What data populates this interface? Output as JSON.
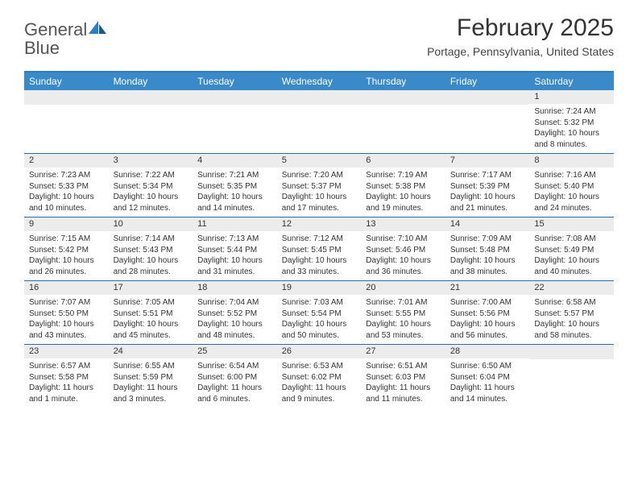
{
  "header": {
    "logo_general": "General",
    "logo_blue": "Blue",
    "month_title": "February 2025",
    "location": "Portage, Pennsylvania, United States"
  },
  "style": {
    "accent_color": "#3a89c9",
    "border_color": "#2e6da4",
    "date_bg": "#ececec",
    "text_color": "#333333",
    "logo_blue_color": "#2e7cc2"
  },
  "days_of_week": [
    "Sunday",
    "Monday",
    "Tuesday",
    "Wednesday",
    "Thursday",
    "Friday",
    "Saturday"
  ],
  "calendar": {
    "weeks": [
      [
        {
          "date": "",
          "sunrise": "",
          "sunset": "",
          "daylight": ""
        },
        {
          "date": "",
          "sunrise": "",
          "sunset": "",
          "daylight": ""
        },
        {
          "date": "",
          "sunrise": "",
          "sunset": "",
          "daylight": ""
        },
        {
          "date": "",
          "sunrise": "",
          "sunset": "",
          "daylight": ""
        },
        {
          "date": "",
          "sunrise": "",
          "sunset": "",
          "daylight": ""
        },
        {
          "date": "",
          "sunrise": "",
          "sunset": "",
          "daylight": ""
        },
        {
          "date": "1",
          "sunrise": "Sunrise: 7:24 AM",
          "sunset": "Sunset: 5:32 PM",
          "daylight": "Daylight: 10 hours and 8 minutes."
        }
      ],
      [
        {
          "date": "2",
          "sunrise": "Sunrise: 7:23 AM",
          "sunset": "Sunset: 5:33 PM",
          "daylight": "Daylight: 10 hours and 10 minutes."
        },
        {
          "date": "3",
          "sunrise": "Sunrise: 7:22 AM",
          "sunset": "Sunset: 5:34 PM",
          "daylight": "Daylight: 10 hours and 12 minutes."
        },
        {
          "date": "4",
          "sunrise": "Sunrise: 7:21 AM",
          "sunset": "Sunset: 5:35 PM",
          "daylight": "Daylight: 10 hours and 14 minutes."
        },
        {
          "date": "5",
          "sunrise": "Sunrise: 7:20 AM",
          "sunset": "Sunset: 5:37 PM",
          "daylight": "Daylight: 10 hours and 17 minutes."
        },
        {
          "date": "6",
          "sunrise": "Sunrise: 7:19 AM",
          "sunset": "Sunset: 5:38 PM",
          "daylight": "Daylight: 10 hours and 19 minutes."
        },
        {
          "date": "7",
          "sunrise": "Sunrise: 7:17 AM",
          "sunset": "Sunset: 5:39 PM",
          "daylight": "Daylight: 10 hours and 21 minutes."
        },
        {
          "date": "8",
          "sunrise": "Sunrise: 7:16 AM",
          "sunset": "Sunset: 5:40 PM",
          "daylight": "Daylight: 10 hours and 24 minutes."
        }
      ],
      [
        {
          "date": "9",
          "sunrise": "Sunrise: 7:15 AM",
          "sunset": "Sunset: 5:42 PM",
          "daylight": "Daylight: 10 hours and 26 minutes."
        },
        {
          "date": "10",
          "sunrise": "Sunrise: 7:14 AM",
          "sunset": "Sunset: 5:43 PM",
          "daylight": "Daylight: 10 hours and 28 minutes."
        },
        {
          "date": "11",
          "sunrise": "Sunrise: 7:13 AM",
          "sunset": "Sunset: 5:44 PM",
          "daylight": "Daylight: 10 hours and 31 minutes."
        },
        {
          "date": "12",
          "sunrise": "Sunrise: 7:12 AM",
          "sunset": "Sunset: 5:45 PM",
          "daylight": "Daylight: 10 hours and 33 minutes."
        },
        {
          "date": "13",
          "sunrise": "Sunrise: 7:10 AM",
          "sunset": "Sunset: 5:46 PM",
          "daylight": "Daylight: 10 hours and 36 minutes."
        },
        {
          "date": "14",
          "sunrise": "Sunrise: 7:09 AM",
          "sunset": "Sunset: 5:48 PM",
          "daylight": "Daylight: 10 hours and 38 minutes."
        },
        {
          "date": "15",
          "sunrise": "Sunrise: 7:08 AM",
          "sunset": "Sunset: 5:49 PM",
          "daylight": "Daylight: 10 hours and 40 minutes."
        }
      ],
      [
        {
          "date": "16",
          "sunrise": "Sunrise: 7:07 AM",
          "sunset": "Sunset: 5:50 PM",
          "daylight": "Daylight: 10 hours and 43 minutes."
        },
        {
          "date": "17",
          "sunrise": "Sunrise: 7:05 AM",
          "sunset": "Sunset: 5:51 PM",
          "daylight": "Daylight: 10 hours and 45 minutes."
        },
        {
          "date": "18",
          "sunrise": "Sunrise: 7:04 AM",
          "sunset": "Sunset: 5:52 PM",
          "daylight": "Daylight: 10 hours and 48 minutes."
        },
        {
          "date": "19",
          "sunrise": "Sunrise: 7:03 AM",
          "sunset": "Sunset: 5:54 PM",
          "daylight": "Daylight: 10 hours and 50 minutes."
        },
        {
          "date": "20",
          "sunrise": "Sunrise: 7:01 AM",
          "sunset": "Sunset: 5:55 PM",
          "daylight": "Daylight: 10 hours and 53 minutes."
        },
        {
          "date": "21",
          "sunrise": "Sunrise: 7:00 AM",
          "sunset": "Sunset: 5:56 PM",
          "daylight": "Daylight: 10 hours and 56 minutes."
        },
        {
          "date": "22",
          "sunrise": "Sunrise: 6:58 AM",
          "sunset": "Sunset: 5:57 PM",
          "daylight": "Daylight: 10 hours and 58 minutes."
        }
      ],
      [
        {
          "date": "23",
          "sunrise": "Sunrise: 6:57 AM",
          "sunset": "Sunset: 5:58 PM",
          "daylight": "Daylight: 11 hours and 1 minute."
        },
        {
          "date": "24",
          "sunrise": "Sunrise: 6:55 AM",
          "sunset": "Sunset: 5:59 PM",
          "daylight": "Daylight: 11 hours and 3 minutes."
        },
        {
          "date": "25",
          "sunrise": "Sunrise: 6:54 AM",
          "sunset": "Sunset: 6:00 PM",
          "daylight": "Daylight: 11 hours and 6 minutes."
        },
        {
          "date": "26",
          "sunrise": "Sunrise: 6:53 AM",
          "sunset": "Sunset: 6:02 PM",
          "daylight": "Daylight: 11 hours and 9 minutes."
        },
        {
          "date": "27",
          "sunrise": "Sunrise: 6:51 AM",
          "sunset": "Sunset: 6:03 PM",
          "daylight": "Daylight: 11 hours and 11 minutes."
        },
        {
          "date": "28",
          "sunrise": "Sunrise: 6:50 AM",
          "sunset": "Sunset: 6:04 PM",
          "daylight": "Daylight: 11 hours and 14 minutes."
        },
        {
          "date": "",
          "sunrise": "",
          "sunset": "",
          "daylight": ""
        }
      ]
    ]
  }
}
